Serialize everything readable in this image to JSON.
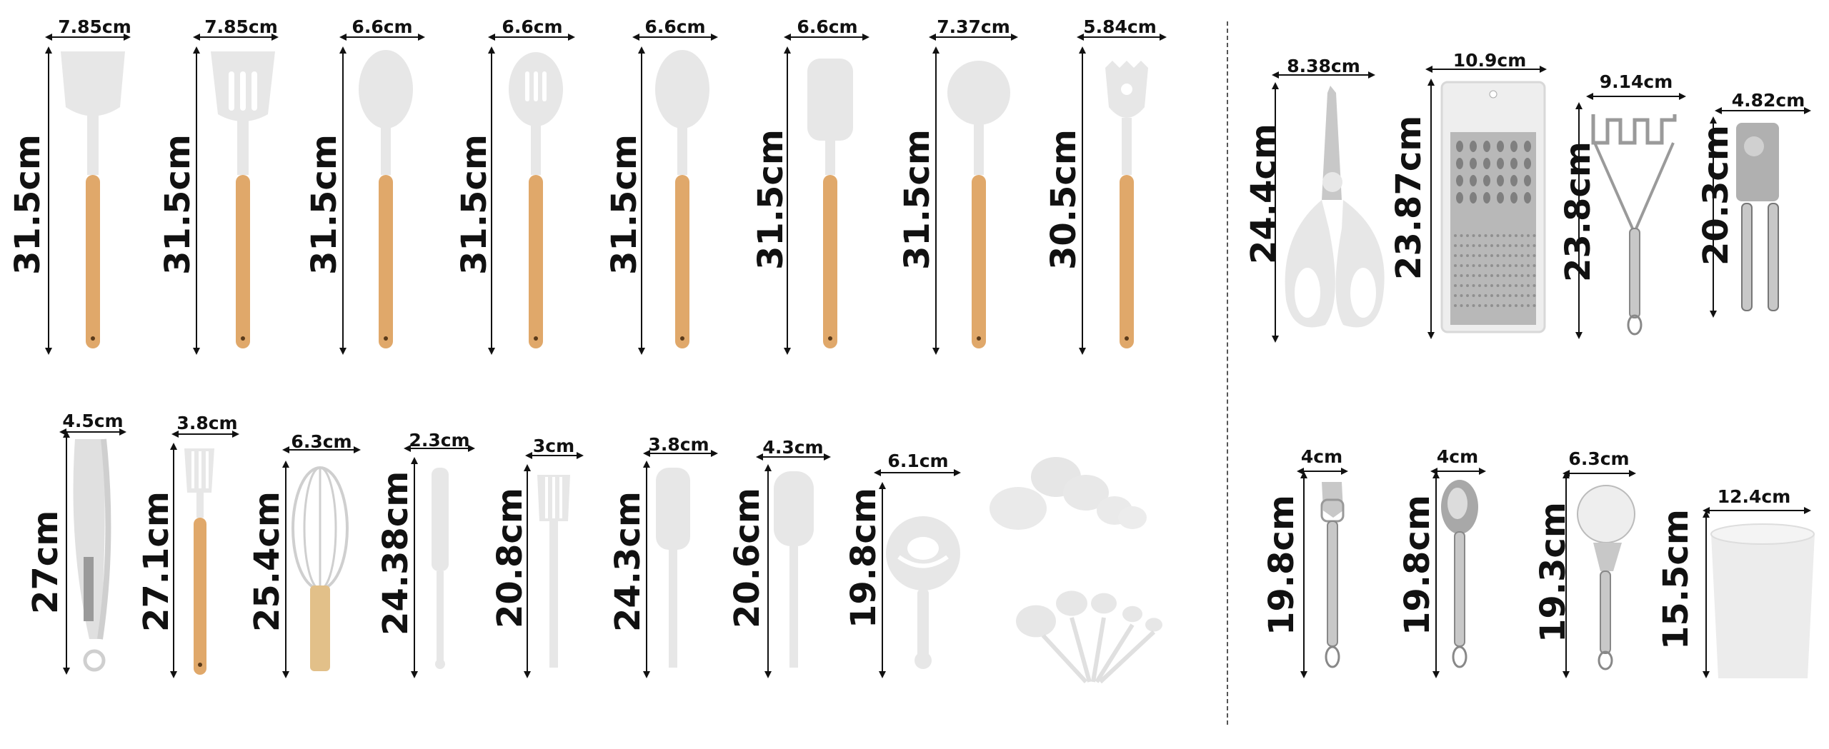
{
  "tools": [
    {
      "width": "7.85cm",
      "height": "31.5cm",
      "icon": "slotted-turner-icon"
    },
    {
      "width": "7.85cm",
      "height": "31.5cm",
      "icon": "slotted-spatula-icon"
    },
    {
      "width": "6.6cm",
      "height": "31.5cm",
      "icon": "spoon-icon"
    },
    {
      "width": "6.6cm",
      "height": "31.5cm",
      "icon": "slotted-spoon-icon"
    },
    {
      "width": "6.6cm",
      "height": "31.5cm",
      "icon": "spoon-spatula-icon"
    },
    {
      "width": "6.6cm",
      "height": "31.5cm",
      "icon": "spatula-icon"
    },
    {
      "width": "7.37cm",
      "height": "31.5cm",
      "icon": "ladle-icon"
    },
    {
      "width": "5.84cm",
      "height": "30.5cm",
      "icon": "pasta-server-icon"
    },
    {
      "width": "8.38cm",
      "height": "24.4cm",
      "icon": "kitchen-scissors-icon"
    },
    {
      "width": "10.9cm",
      "height": "23.87cm",
      "icon": "grater-icon"
    },
    {
      "width": "9.14cm",
      "height": "23.8cm",
      "icon": "potato-masher-icon"
    },
    {
      "width": "4.82cm",
      "height": "20.3cm",
      "icon": "can-opener-icon"
    },
    {
      "width": "4.5cm",
      "height": "27cm",
      "icon": "tongs-icon"
    },
    {
      "width": "3.8cm",
      "height": "27.1cm",
      "icon": "basting-brush-icon"
    },
    {
      "width": "6.3cm",
      "height": "25.4cm",
      "icon": "whisk-icon"
    },
    {
      "width": "2.3cm",
      "height": "24.38cm",
      "icon": "narrow-spatula-icon"
    },
    {
      "width": "3cm",
      "height": "20.8cm",
      "icon": "pastry-brush-icon"
    },
    {
      "width": "3.8cm",
      "height": "24.3cm",
      "icon": "small-spatula-icon"
    },
    {
      "width": "4.3cm",
      "height": "20.6cm",
      "icon": "mini-spatula-icon"
    },
    {
      "width": "6.1cm",
      "height": "19.8cm",
      "icon": "egg-separator-icon"
    },
    {
      "width": "4cm",
      "height": "19.8cm",
      "icon": "bottle-opener-icon"
    },
    {
      "width": "4cm",
      "height": "19.8cm",
      "icon": "ice-cream-scoop-icon"
    },
    {
      "width": "6.3cm",
      "height": "19.3cm",
      "icon": "pizza-cutter-icon"
    },
    {
      "width": "12.4cm",
      "height": "15.5cm",
      "icon": "utensil-holder-icon"
    }
  ],
  "extras": [
    {
      "icon": "measuring-cups-icon"
    },
    {
      "icon": "measuring-spoons-icon"
    }
  ],
  "colors": {
    "silicone": "#e7e7e7",
    "wood": "#e0a86a",
    "steel": "#c8c8c8",
    "line": "#111111"
  }
}
